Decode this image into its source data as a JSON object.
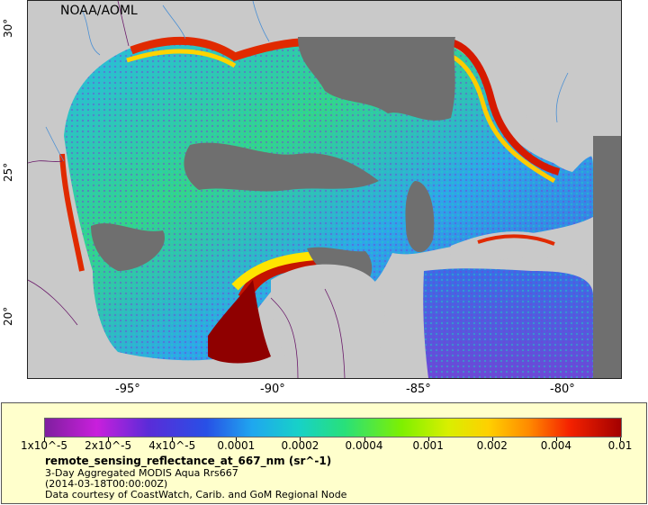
{
  "map": {
    "source_label": "NOAA/AOML",
    "lat_ticks": [
      "30°",
      "25°",
      "20°"
    ],
    "lon_ticks": [
      "-95°",
      "-90°",
      "-85°",
      "-80°"
    ],
    "colors": {
      "land": "#c9c9c9",
      "nodata_ocean": "#6f6f6f",
      "rivers": "#4a8fd4",
      "borders": "#6a1a6a"
    }
  },
  "legend": {
    "colorbar_ticks": [
      "1x10^-5",
      "2x10^-5",
      "4x10^-5",
      "0.0001",
      "0.0002",
      "0.0004",
      "0.001",
      "0.002",
      "0.004",
      "0.01"
    ],
    "title": "remote_sensing_reflectance_at_667_nm (sr^-1)",
    "line1": "3-Day Aggregated MODIS Aqua Rrs667",
    "line2": "(2014-03-18T00:00:00Z)",
    "line3": "Data courtesy of CoastWatch, Carib. and GoM Regional Node",
    "scale": "log"
  }
}
